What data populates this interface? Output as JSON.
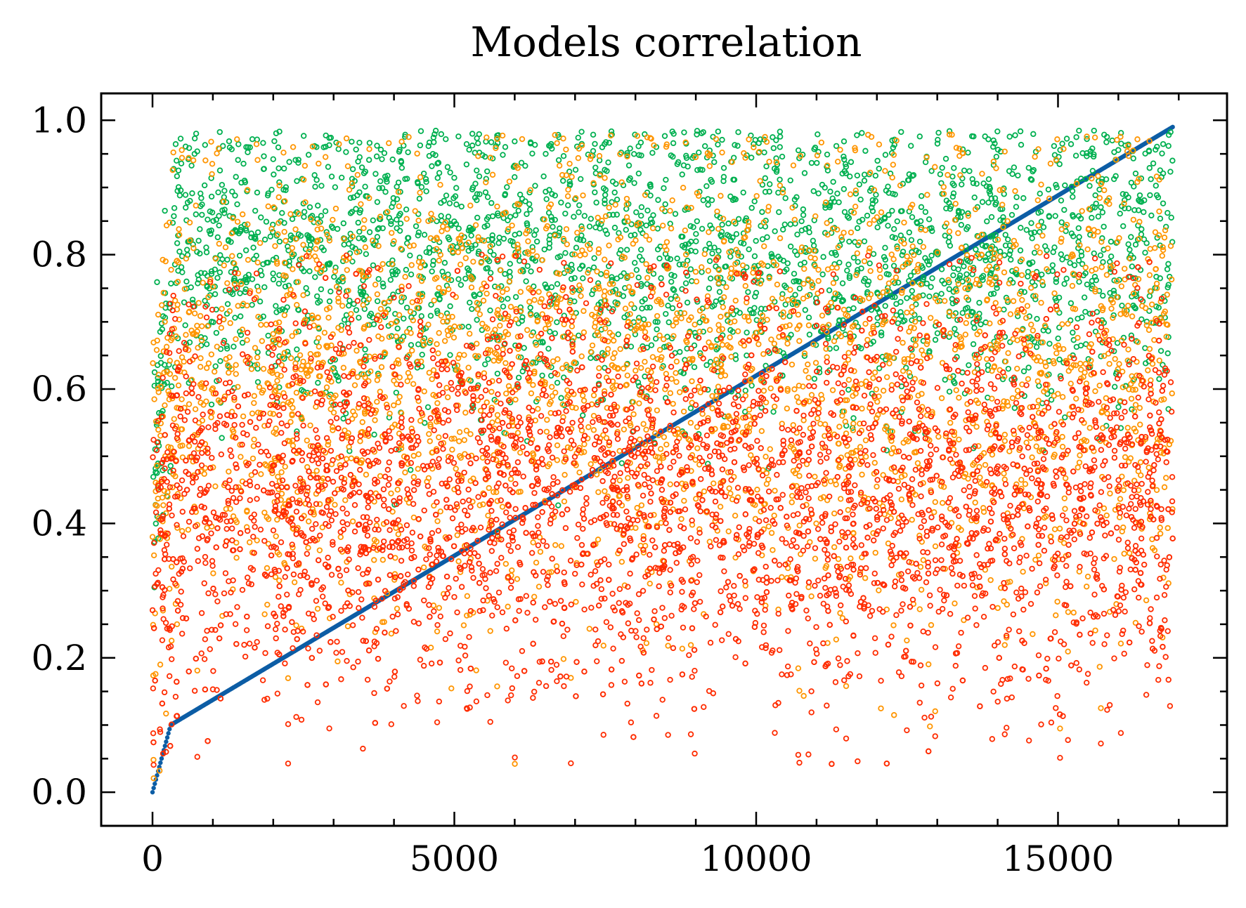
{
  "chart_data": {
    "type": "scatter",
    "title": "Models correlation",
    "xlabel": "",
    "ylabel": "",
    "xlim": [
      -850,
      17800
    ],
    "ylim": [
      -0.05,
      1.04
    ],
    "x_ticks": [
      0,
      5000,
      10000,
      15000
    ],
    "x_tick_labels": [
      "0",
      "5000",
      "10000",
      "15000"
    ],
    "y_ticks": [
      0.0,
      0.2,
      0.4,
      0.6,
      0.8,
      1.0
    ],
    "y_tick_labels": [
      "0.0",
      "0.2",
      "0.4",
      "0.6",
      "0.8",
      "1.0"
    ],
    "grid": false,
    "legend": "none",
    "n_points_per_series": 16900,
    "series": [
      {
        "color": "#0c5da5",
        "marker": "filled-dot",
        "trend": "monotonic increasing from 0.0 to 0.99 over index 0-16900"
      },
      {
        "color": "#00b050",
        "marker": "open-circle",
        "typical_range": [
          0.55,
          0.97
        ],
        "center": 0.83
      },
      {
        "color": "#ff9500",
        "marker": "open-circle",
        "typical_range": [
          0.2,
          0.95
        ],
        "center": 0.6
      },
      {
        "color": "#ff2c00",
        "marker": "open-circle",
        "typical_range": [
          0.05,
          0.8
        ],
        "center": 0.43
      }
    ]
  }
}
